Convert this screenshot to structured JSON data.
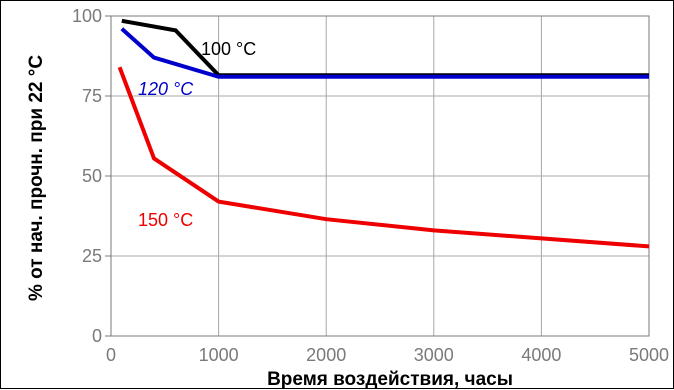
{
  "chart_data": {
    "type": "line",
    "xlabel": "Время воздействия, часы",
    "ylabel": "% от нач.  прочн. при 22 °C",
    "xlim": [
      0,
      5000
    ],
    "ylim": [
      0,
      100
    ],
    "x_ticks": [
      0,
      1000,
      2000,
      3000,
      4000,
      5000
    ],
    "y_ticks": [
      0,
      25,
      50,
      75,
      100
    ],
    "grid": true,
    "series": [
      {
        "name": "100 °C",
        "color": "#000000",
        "points": [
          [
            100,
            98.5
          ],
          [
            600,
            95.5
          ],
          [
            1000,
            81.5
          ],
          [
            5000,
            81.5
          ]
        ]
      },
      {
        "name": "120 °C",
        "color": "#0000cc",
        "points": [
          [
            100,
            96
          ],
          [
            400,
            87
          ],
          [
            1000,
            81
          ],
          [
            5000,
            81
          ]
        ]
      },
      {
        "name": "150 °C",
        "color": "#ee0000",
        "points": [
          [
            80,
            84
          ],
          [
            400,
            55.5
          ],
          [
            1000,
            42
          ],
          [
            2000,
            36.5
          ],
          [
            3000,
            33
          ],
          [
            4000,
            30.5
          ],
          [
            5000,
            28
          ]
        ]
      }
    ]
  }
}
